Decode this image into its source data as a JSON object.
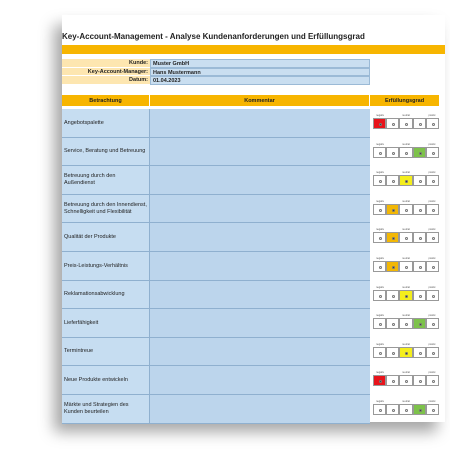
{
  "header": {
    "title": "Key-Account-Management - Analyse Kundenanforderungen und Erfüllungsgrad"
  },
  "info": [
    {
      "label": "Kunde:",
      "value": "Muster GmbH"
    },
    {
      "label": "Key-Account-Manager:",
      "value": "Hans Mustermann"
    },
    {
      "label": "Datum:",
      "value": "01.04.2023"
    }
  ],
  "table": {
    "columns": [
      "Betrachtung",
      "Kommentar",
      "Erfüllungsgrad"
    ],
    "scale_labels": [
      "negativ",
      "neutral",
      "positiv"
    ],
    "scale_colors": [
      "#e8141b",
      "#f2b705",
      "#f4ee1c",
      "#7dc24a",
      "#3e9e3a"
    ],
    "rows": [
      {
        "label": "Angebotspalette",
        "rating": 1
      },
      {
        "label": "Service, Beratung und Betreuung",
        "rating": 4
      },
      {
        "label": "Betreuung durch den Außendienst",
        "rating": 3
      },
      {
        "label": "Betreuung durch den Innendienst, Schnelligkeit und Flexibilität",
        "rating": 2
      },
      {
        "label": "Qualität der Produkte",
        "rating": 2
      },
      {
        "label": "Preis-Leistungs-Verhältnis",
        "rating": 2
      },
      {
        "label": "Reklamationsabwicklung",
        "rating": 3
      },
      {
        "label": "Lieferfähigkeit",
        "rating": 4
      },
      {
        "label": "Termintreue",
        "rating": 3
      },
      {
        "label": "Neue Produkte entwickeln",
        "rating": 1
      },
      {
        "label": "Märkte und Strategien des Kunden beurteilen",
        "rating": 4
      }
    ]
  }
}
